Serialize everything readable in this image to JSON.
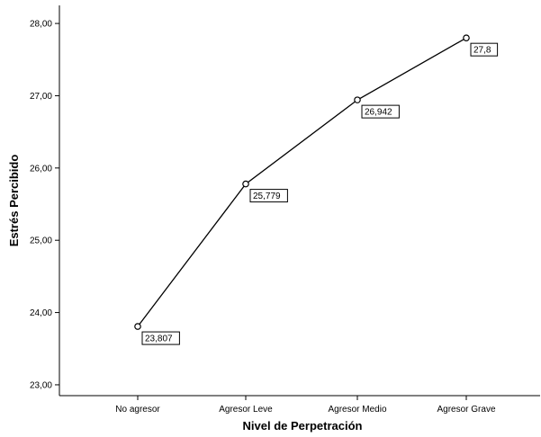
{
  "chart_data": {
    "type": "line",
    "title": "",
    "xlabel": "Nivel de Perpetración",
    "ylabel": "Estrés Percibido",
    "categories": [
      "No agresor",
      "Agresor Leve",
      "Agresor Medio",
      "Agresor Grave"
    ],
    "series": [
      {
        "values": [
          23.807,
          25.779,
          26.942,
          27.8
        ],
        "data_labels": [
          "23,807",
          "25,779",
          "26,942",
          "27,8"
        ]
      }
    ],
    "ylim": [
      22.85,
      28.25
    ],
    "yticks": [
      23,
      24,
      25,
      26,
      27,
      28
    ],
    "ytick_labels": [
      "23,00",
      "24,00",
      "25,00",
      "26,00",
      "27,00",
      "28,00"
    ],
    "grid": false,
    "legend": "none",
    "colors": {
      "line": "#000000",
      "marker_fill": "#ffffff",
      "axis": "#000000"
    }
  }
}
